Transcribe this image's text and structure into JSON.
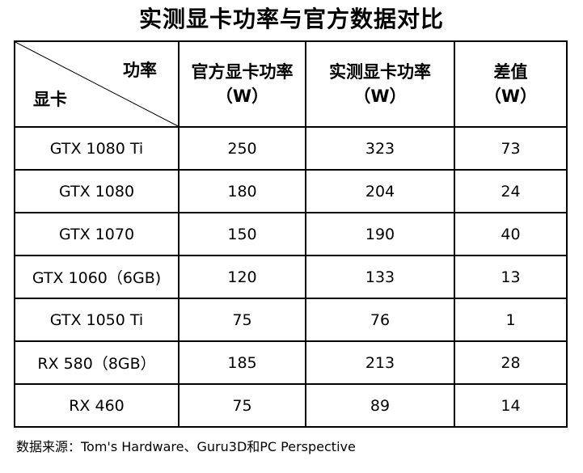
{
  "title": "实测显卡功率与官方数据对比",
  "table": {
    "corner_top": "功率",
    "corner_bottom": "显卡",
    "columns": [
      {
        "line1": "官方显卡功率",
        "line2": "（W）"
      },
      {
        "line1": "实测显卡功率",
        "line2": "（W）"
      },
      {
        "line1": "差值",
        "line2": "（W）"
      }
    ],
    "rows": [
      {
        "gpu": "GTX 1080 Ti",
        "official": "250",
        "measured": "323",
        "diff": "73"
      },
      {
        "gpu": "GTX 1080",
        "official": "180",
        "measured": "204",
        "diff": "24"
      },
      {
        "gpu": "GTX 1070",
        "official": "150",
        "measured": "190",
        "diff": "40"
      },
      {
        "gpu": "GTX 1060（6GB)",
        "official": "120",
        "measured": "133",
        "diff": "13"
      },
      {
        "gpu": "GTX 1050 Ti",
        "official": "75",
        "measured": "76",
        "diff": "1"
      },
      {
        "gpu": "RX 580（8GB）",
        "official": "185",
        "measured": "213",
        "diff": "28"
      },
      {
        "gpu": "RX 460",
        "official": "75",
        "measured": "89",
        "diff": "14"
      }
    ]
  },
  "source": "数据来源：Tom's Hardware、Guru3D和PC Perspective"
}
